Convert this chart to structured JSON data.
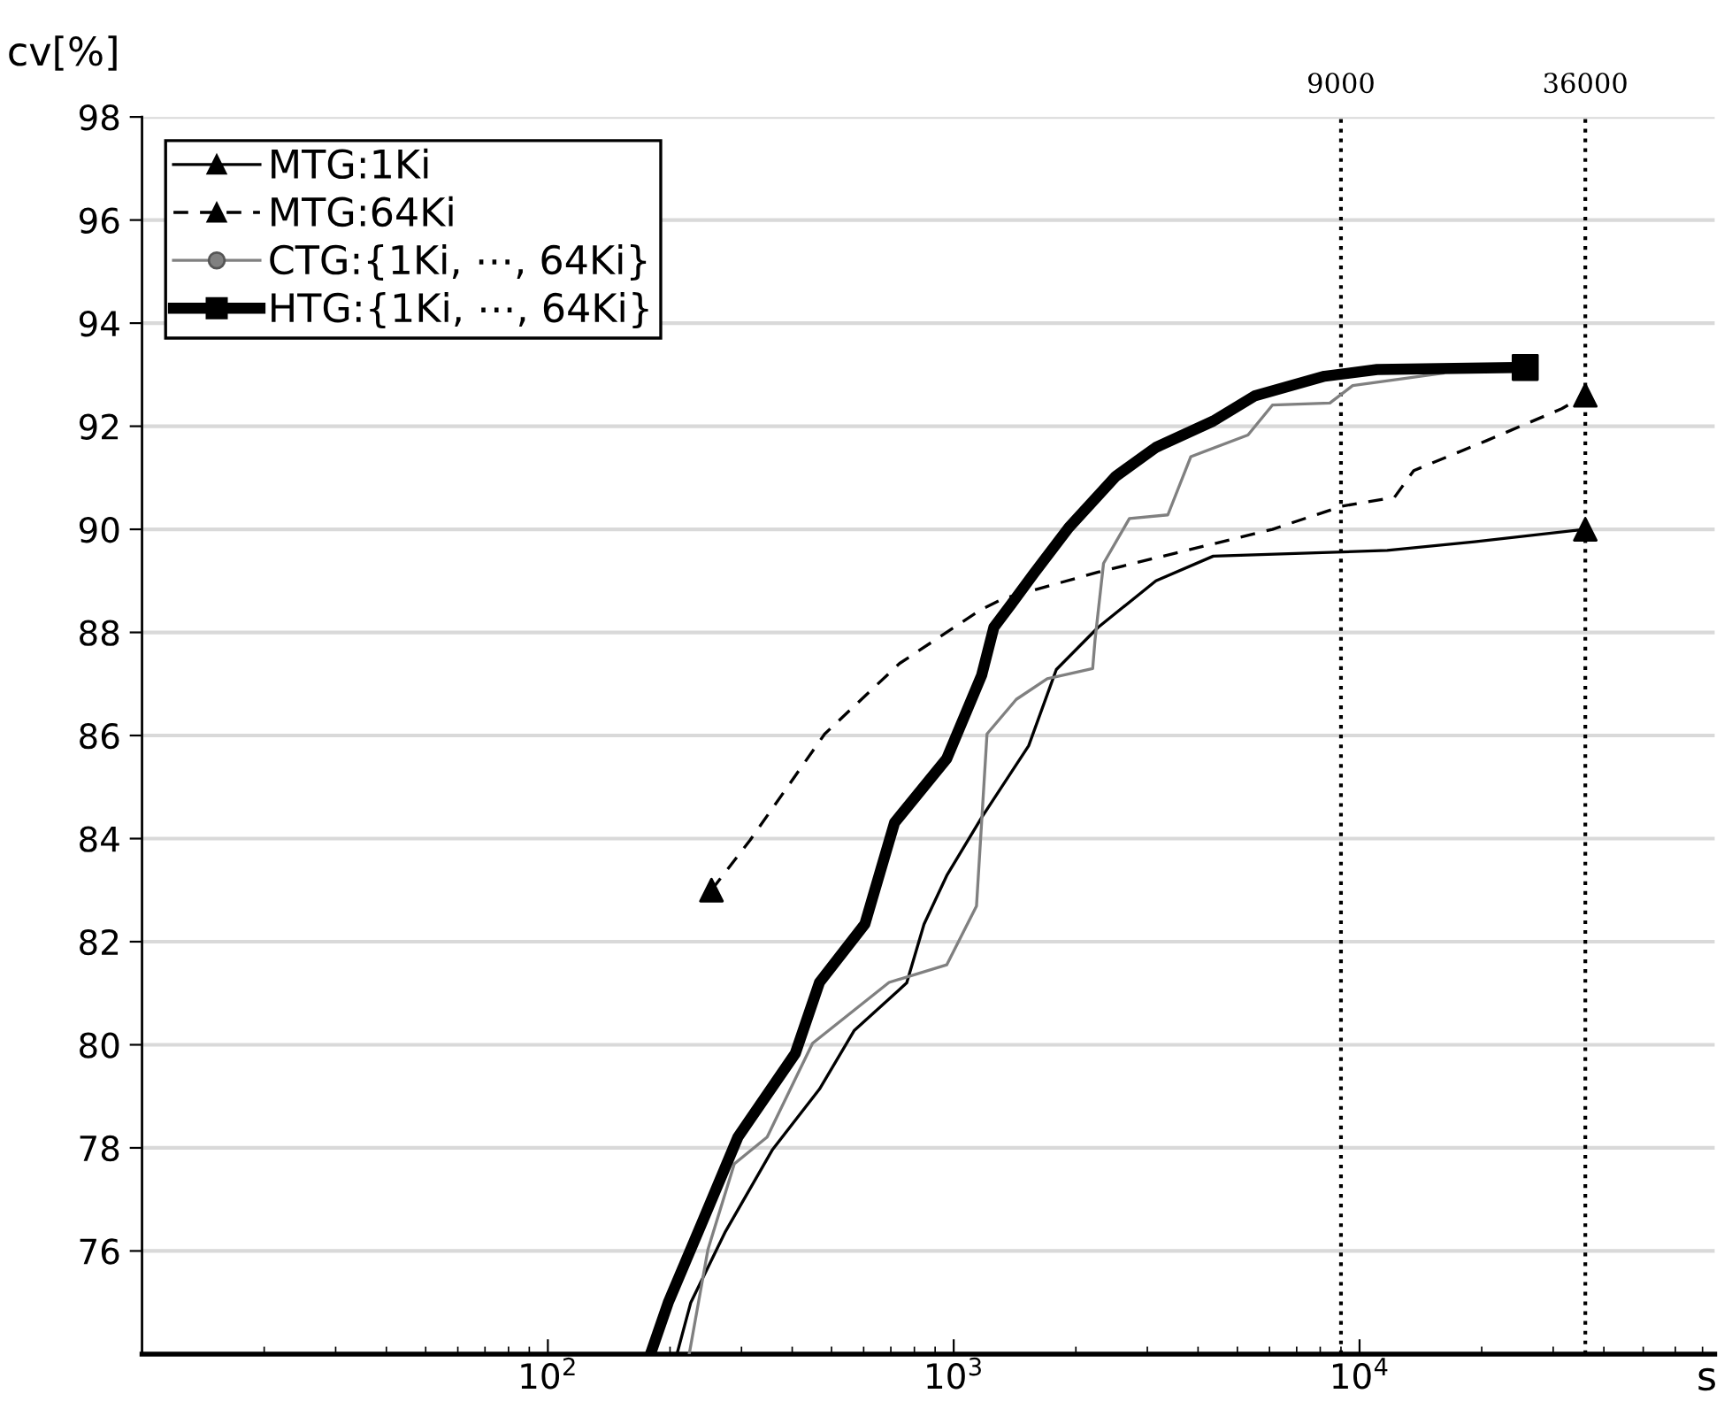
{
  "chart_data": {
    "type": "line",
    "xlabel": "s",
    "ylabel": "cv[%]",
    "log": "x",
    "xlim": [
      10,
      75000
    ],
    "xticks": [
      {
        "value": 100,
        "label": "10$^{2}$"
      },
      {
        "value": 1000,
        "label": "10$^{3}$"
      },
      {
        "value": 10000,
        "label": "10$^{4}$"
      }
    ],
    "ylim": [
      74,
      98
    ],
    "yticks": [
      76,
      78,
      80,
      82,
      84,
      86,
      88,
      90,
      92,
      94,
      96,
      98
    ],
    "grid": "y",
    "legend": "top left",
    "ref_lines": [
      {
        "axis": "x",
        "value": 9000,
        "label": "9000",
        "line_style": "dotted",
        "color": "#000000"
      },
      {
        "axis": "x",
        "value": 36000,
        "label": "36000",
        "line_style": "dotted",
        "color": "#000000"
      }
    ],
    "series": [
      {
        "name": "MTG:1Ki",
        "color": "#000000",
        "line_style": "solid",
        "x": [
          208,
          225,
          274,
          358,
          467,
          569,
          766,
          845,
          961,
          1172,
          1530,
          1790,
          2270,
          3150,
          4360,
          11700,
          19200,
          36000
        ],
        "values": [
          74.0,
          75.0,
          76.38,
          77.97,
          79.14,
          80.28,
          81.2,
          82.34,
          83.28,
          84.41,
          85.8,
          87.28,
          88.1,
          89.0,
          89.48,
          89.59,
          89.76,
          90.0
        ]
      },
      {
        "name": "MTG:64Ki",
        "color": "#000000",
        "line_style": "dashed",
        "x": [
          253,
          315,
          481,
          736,
          1172,
          1330,
          2270,
          6100,
          9060,
          12190,
          13600,
          20560,
          31500,
          36000
        ],
        "values": [
          83.0,
          83.97,
          86.03,
          87.4,
          88.45,
          88.66,
          89.17,
          90.0,
          90.45,
          90.62,
          91.14,
          91.72,
          92.34,
          92.6
        ]
      },
      {
        "name": "CTG:{1Ki, ⋯, 64Ki}",
        "color": "#808080",
        "line_style": "solid",
        "x": [
          223,
          248,
          288,
          347,
          449,
          693,
          961,
          1138,
          1208,
          1426,
          1700,
          2200,
          2230,
          2340,
          2710,
          3370,
          3840,
          5310,
          6100,
          8450,
          9620,
          16070
        ],
        "values": [
          74.0,
          76.03,
          77.69,
          78.21,
          80.03,
          81.21,
          81.55,
          82.69,
          86.03,
          86.7,
          87.1,
          87.3,
          87.86,
          89.34,
          90.21,
          90.28,
          91.41,
          91.83,
          92.41,
          92.45,
          92.79,
          93.03
        ]
      },
      {
        "name": "HTG:{1Ki, ⋯, 64Ki}",
        "color": "#000000",
        "line_style": "solid",
        "x": [
          179,
          198,
          241,
          294,
          407,
          467,
          604,
          715,
          961,
          1172,
          1256,
          1387,
          1575,
          1920,
          2510,
          3150,
          4360,
          5520,
          8200,
          11050,
          25600
        ],
        "values": [
          74.0,
          75.0,
          76.59,
          78.21,
          79.83,
          81.21,
          82.34,
          84.31,
          85.55,
          87.17,
          88.1,
          88.55,
          89.14,
          90.03,
          91.03,
          91.59,
          92.1,
          92.59,
          92.97,
          93.1,
          93.14
        ]
      }
    ]
  }
}
